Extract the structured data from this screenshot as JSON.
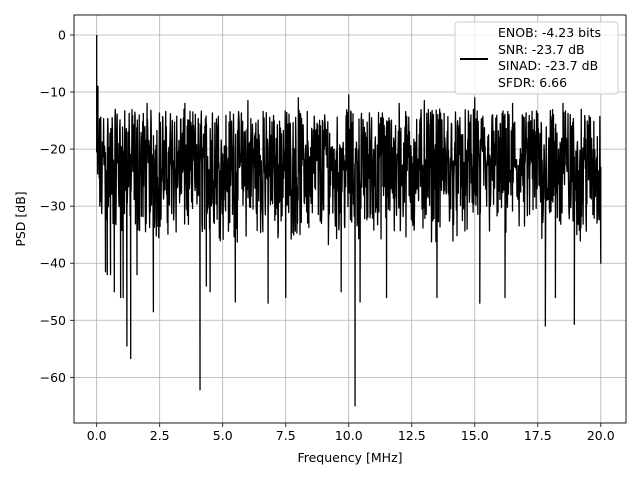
{
  "chart_data": {
    "type": "line",
    "title": "",
    "xlabel": "Frequency [MHz]",
    "ylabel": "PSD [dB]",
    "xlim": [
      -0.9,
      21.0
    ],
    "ylim": [
      -68,
      3.5
    ],
    "xticks": [
      0.0,
      2.5,
      5.0,
      7.5,
      10.0,
      12.5,
      15.0,
      17.5,
      20.0
    ],
    "xtick_labels": [
      "0.0",
      "2.5",
      "5.0",
      "7.5",
      "10.0",
      "12.5",
      "15.0",
      "17.5",
      "20.0"
    ],
    "yticks": [
      0,
      -10,
      -20,
      -30,
      -40,
      -50,
      -60
    ],
    "ytick_labels": [
      "0",
      "−10",
      "−20",
      "−30",
      "−40",
      "−50",
      "−60"
    ],
    "grid": true,
    "legend_position": "top-right",
    "legend": [
      "ENOB: -4.23 bits",
      "SNR: -23.7 dB",
      "SINAD: -23.7 dB",
      "SFDR: 6.66"
    ],
    "series": [
      {
        "color": "#000000",
        "x_range": [
          0.0,
          20.0
        ],
        "peak": [
          0.0,
          0.0
        ],
        "typical_upper": -13,
        "typical_lower": -37,
        "notable_minima": [
          [
            0.35,
            -41.5
          ],
          [
            0.42,
            -42
          ],
          [
            0.55,
            -42
          ],
          [
            0.7,
            -45
          ],
          [
            0.95,
            -46
          ],
          [
            1.05,
            -46
          ],
          [
            1.2,
            -54.5
          ],
          [
            1.35,
            -56.7
          ],
          [
            1.6,
            -42
          ],
          [
            2.25,
            -48.5
          ],
          [
            4.1,
            -62.2
          ],
          [
            4.35,
            -44
          ],
          [
            4.5,
            -45
          ],
          [
            5.5,
            -46.8
          ],
          [
            6.8,
            -47
          ],
          [
            7.5,
            -46
          ],
          [
            9.7,
            -45
          ],
          [
            10.25,
            -65
          ],
          [
            10.45,
            -46.8
          ],
          [
            11.5,
            -46
          ],
          [
            13.5,
            -46
          ],
          [
            15.2,
            -47
          ],
          [
            16.2,
            -46
          ],
          [
            17.8,
            -51
          ],
          [
            18.2,
            -46
          ],
          [
            18.95,
            -50.7
          ],
          [
            20.0,
            -40
          ]
        ],
        "notable_maxima": [
          [
            0.05,
            -9
          ],
          [
            2.0,
            -12
          ],
          [
            3.5,
            -12
          ],
          [
            6.0,
            -11.5
          ],
          [
            8.0,
            -11
          ],
          [
            10.0,
            -10.5
          ],
          [
            12.0,
            -12
          ],
          [
            13.0,
            -11.5
          ],
          [
            15.0,
            -11
          ],
          [
            16.5,
            -12
          ],
          [
            18.5,
            -12
          ]
        ]
      }
    ]
  }
}
